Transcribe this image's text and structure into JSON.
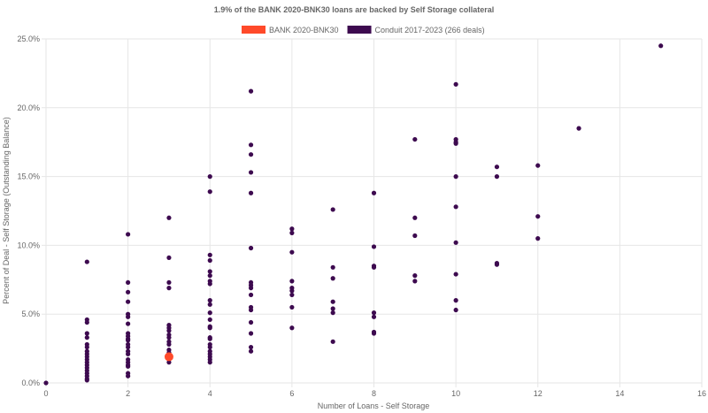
{
  "chart_data": {
    "type": "scatter",
    "title": "1.9% of the BANK 2020-BNK30 loans are backed by Self Storage collateral",
    "xlabel": "Number of Loans - Self Storage",
    "ylabel": "Percent of Deal - Self Storage (Outstanding Balance)",
    "xlim": [
      0,
      16
    ],
    "ylim": [
      0,
      25
    ],
    "xticks": [
      0,
      2,
      4,
      6,
      8,
      10,
      12,
      14,
      16
    ],
    "yticks": [
      "0.0%",
      "5.0%",
      "10.0%",
      "15.0%",
      "20.0%",
      "25.0%"
    ],
    "grid": true,
    "legend_placement": "top",
    "series": [
      {
        "name": "BANK 2020-BNK30",
        "color": "#ff4a2a",
        "points": [
          [
            3,
            1.9
          ]
        ]
      },
      {
        "name": "Conduit 2017-2023 (266 deals)",
        "color": "#3d0a4f",
        "points": [
          [
            0,
            0
          ],
          [
            1,
            8.8
          ],
          [
            1,
            4.6
          ],
          [
            1,
            4.4
          ],
          [
            1,
            3.6
          ],
          [
            1,
            3.3
          ],
          [
            1,
            2.8
          ],
          [
            1,
            2.6
          ],
          [
            1,
            2.3
          ],
          [
            1,
            2.1
          ],
          [
            1,
            1.9
          ],
          [
            1,
            1.7
          ],
          [
            1,
            1.5
          ],
          [
            1,
            1.3
          ],
          [
            1,
            1.1
          ],
          [
            1,
            0.9
          ],
          [
            1,
            0.7
          ],
          [
            1,
            0.5
          ],
          [
            1,
            0.3
          ],
          [
            1,
            0.2
          ],
          [
            2,
            10.8
          ],
          [
            2,
            7.3
          ],
          [
            2,
            6.6
          ],
          [
            2,
            5.9
          ],
          [
            2,
            5.0
          ],
          [
            2,
            4.8
          ],
          [
            2,
            4.3
          ],
          [
            2,
            3.6
          ],
          [
            2,
            3.4
          ],
          [
            2,
            3.2
          ],
          [
            2,
            3.1
          ],
          [
            2,
            2.8
          ],
          [
            2,
            2.6
          ],
          [
            2,
            2.3
          ],
          [
            2,
            2.1
          ],
          [
            2,
            1.7
          ],
          [
            2,
            1.5
          ],
          [
            2,
            1.3
          ],
          [
            2,
            1.2
          ],
          [
            2,
            0.7
          ],
          [
            2,
            0.5
          ],
          [
            3,
            12.0
          ],
          [
            3,
            9.1
          ],
          [
            3,
            7.3
          ],
          [
            3,
            6.9
          ],
          [
            3,
            4.2
          ],
          [
            3,
            4.0
          ],
          [
            3,
            3.8
          ],
          [
            3,
            3.5
          ],
          [
            3,
            3.3
          ],
          [
            3,
            3.0
          ],
          [
            3,
            2.8
          ],
          [
            3,
            2.4
          ],
          [
            3,
            2.2
          ],
          [
            3,
            1.5
          ],
          [
            4,
            15.0
          ],
          [
            4,
            13.9
          ],
          [
            4,
            9.3
          ],
          [
            4,
            8.9
          ],
          [
            4,
            8.1
          ],
          [
            4,
            7.8
          ],
          [
            4,
            7.4
          ],
          [
            4,
            7.2
          ],
          [
            4,
            6.0
          ],
          [
            4,
            5.7
          ],
          [
            4,
            5.1
          ],
          [
            4,
            4.6
          ],
          [
            4,
            4.1
          ],
          [
            4,
            4.0
          ],
          [
            4,
            3.3
          ],
          [
            4,
            3.2
          ],
          [
            4,
            2.8
          ],
          [
            4,
            2.6
          ],
          [
            4,
            2.3
          ],
          [
            4,
            2.1
          ],
          [
            4,
            1.9
          ],
          [
            4,
            1.7
          ],
          [
            4,
            1.5
          ],
          [
            5,
            21.2
          ],
          [
            5,
            17.3
          ],
          [
            5,
            16.6
          ],
          [
            5,
            15.3
          ],
          [
            5,
            13.8
          ],
          [
            5,
            9.8
          ],
          [
            5,
            7.3
          ],
          [
            5,
            7.1
          ],
          [
            5,
            6.9
          ],
          [
            5,
            6.4
          ],
          [
            5,
            5.5
          ],
          [
            5,
            5.3
          ],
          [
            5,
            4.4
          ],
          [
            5,
            3.6
          ],
          [
            5,
            2.6
          ],
          [
            5,
            2.3
          ],
          [
            6,
            11.2
          ],
          [
            6,
            10.9
          ],
          [
            6,
            9.5
          ],
          [
            6,
            7.4
          ],
          [
            6,
            6.9
          ],
          [
            6,
            6.7
          ],
          [
            6,
            6.4
          ],
          [
            6,
            5.5
          ],
          [
            6,
            4.0
          ],
          [
            7,
            12.6
          ],
          [
            7,
            8.4
          ],
          [
            7,
            7.6
          ],
          [
            7,
            5.9
          ],
          [
            7,
            5.4
          ],
          [
            7,
            5.1
          ],
          [
            7,
            3.0
          ],
          [
            8,
            13.8
          ],
          [
            8,
            9.9
          ],
          [
            8,
            8.5
          ],
          [
            8,
            8.4
          ],
          [
            8,
            5.1
          ],
          [
            8,
            4.8
          ],
          [
            8,
            3.7
          ],
          [
            8,
            3.6
          ],
          [
            9,
            17.7
          ],
          [
            9,
            12.0
          ],
          [
            9,
            10.7
          ],
          [
            9,
            7.8
          ],
          [
            9,
            7.4
          ],
          [
            10,
            21.7
          ],
          [
            10,
            17.7
          ],
          [
            10,
            17.5
          ],
          [
            10,
            17.4
          ],
          [
            10,
            15.0
          ],
          [
            10,
            12.8
          ],
          [
            10,
            10.2
          ],
          [
            10,
            7.9
          ],
          [
            10,
            6.0
          ],
          [
            10,
            5.3
          ],
          [
            11,
            15.7
          ],
          [
            11,
            15.0
          ],
          [
            11,
            8.7
          ],
          [
            11,
            8.6
          ],
          [
            12,
            15.8
          ],
          [
            12,
            12.1
          ],
          [
            12,
            10.5
          ],
          [
            13,
            18.5
          ],
          [
            15,
            24.5
          ]
        ]
      }
    ]
  }
}
